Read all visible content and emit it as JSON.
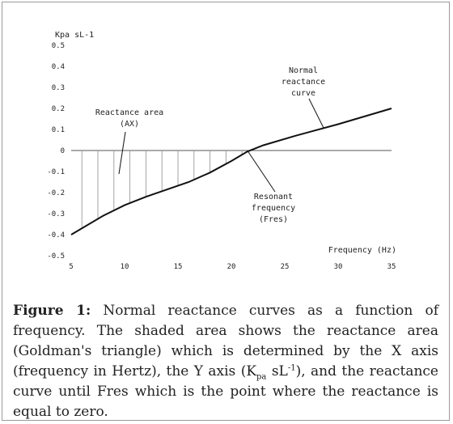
{
  "chart_data": {
    "type": "line",
    "title": "",
    "ylabel": "Kpa sL-1",
    "xlabel": "Frequency (Hz)",
    "xlim": [
      5,
      35
    ],
    "ylim": [
      -0.5,
      0.5
    ],
    "x_ticks": [
      "5",
      "10",
      "15",
      "20",
      "25",
      "30",
      "35"
    ],
    "y_ticks": [
      "0.5",
      "0.4",
      "0.3",
      "0.2",
      "0.1",
      "0",
      "-0.1",
      "-0.2",
      "-0.3",
      "-0.4",
      "-0.5"
    ],
    "series": [
      {
        "x": [
          5,
          8,
          10,
          12,
          14,
          16,
          18,
          20,
          21.5,
          23,
          26,
          30,
          35
        ],
        "y": [
          -0.4,
          -0.31,
          -0.26,
          -0.22,
          -0.185,
          -0.15,
          -0.105,
          -0.05,
          -0.005,
          0.025,
          0.07,
          0.125,
          0.2
        ]
      }
    ],
    "shaded_region": {
      "x_start": 6,
      "x_end": 21.5,
      "hatch_spacing": 1.5
    },
    "annotations": [
      {
        "id": "ax",
        "lines": [
          "Reactance area",
          "(AX)"
        ]
      },
      {
        "id": "normal",
        "lines": [
          "Normal",
          "reactance",
          "curve"
        ]
      },
      {
        "id": "fres",
        "lines": [
          "Resonant",
          "frequency",
          "(Fres)"
        ]
      }
    ],
    "grid": false
  },
  "caption": {
    "label": "Figure 1:",
    "text_1": " Normal reactance curves as a function of frequency. The shaded area shows the reactance area (Goldman's triangle) which is determined by the X axis (frequency in Hertz), the Y axis (K",
    "sub": "pa",
    "text_2": " sL",
    "sup": "-1",
    "text_3": "), and the reactance curve until Fres which is the point where the reactance is equal to zero."
  }
}
